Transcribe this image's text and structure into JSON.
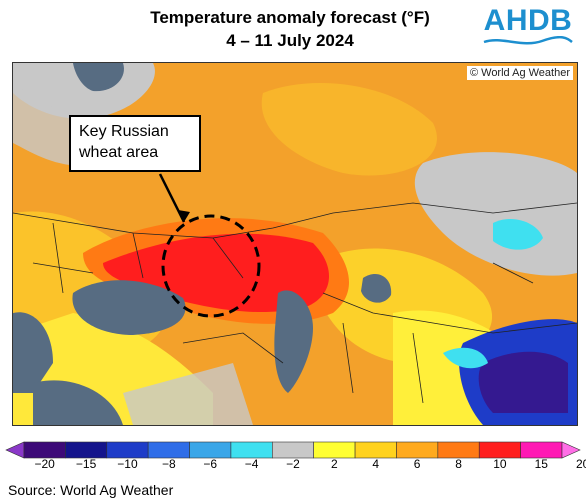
{
  "title": {
    "line1": "Temperature anomaly forecast (°F)",
    "line2": "4 – 11 July 2024"
  },
  "logo": {
    "text": "AHDB",
    "color": "#1d8fcf"
  },
  "map": {
    "watermark": "© World Ag Weather",
    "callout": {
      "line1": "Key Russian",
      "line2": "wheat area"
    }
  },
  "legend": {
    "labels": [
      "−20",
      "−15",
      "−10",
      "−8",
      "−6",
      "−4",
      "−2",
      "2",
      "4",
      "6",
      "8",
      "10",
      "15",
      "20"
    ],
    "colors": [
      "#3d0a78",
      "#14148c",
      "#1e3cc8",
      "#2f6de8",
      "#3aa6e8",
      "#3fe0f0",
      "#c8c8c8",
      "#ffff33",
      "#ffd21e",
      "#ffaa1e",
      "#ff7a14",
      "#ff1e1e",
      "#ff19b4"
    ],
    "low_end_color": "#8a38c8",
    "high_end_color": "#ff6ee6"
  },
  "source": "Source: World Ag Weather"
}
